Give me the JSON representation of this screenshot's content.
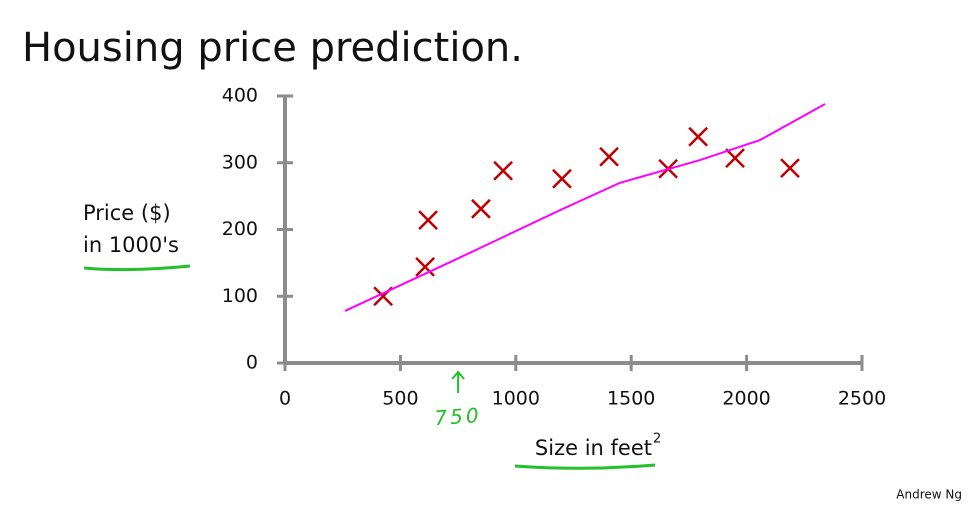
{
  "chart_data": {
    "type": "scatter",
    "title": "Housing price prediction.",
    "ylabel": [
      "Price ($)",
      "in 1000's"
    ],
    "xlabel": {
      "text": "Size in feet",
      "superscript": "2"
    },
    "credit": "Andrew Ng",
    "annotation": {
      "text": "750",
      "x": 750,
      "color": "#22c02a"
    },
    "xlim": [
      0,
      2500
    ],
    "ylim": [
      0,
      400
    ],
    "xticks": [
      0,
      500,
      1000,
      1500,
      2000,
      2500
    ],
    "yticks": [
      0,
      100,
      200,
      300,
      400
    ],
    "series": [
      {
        "type": "scatter",
        "color": "#c00000",
        "x": [
          425,
          607,
          620,
          849,
          945,
          1200,
          1404,
          1660,
          1790,
          1950,
          2188
        ],
        "values": [
          100,
          144,
          214,
          231,
          288,
          276,
          309,
          291,
          339,
          307,
          292
        ]
      },
      {
        "type": "line",
        "color": "#ff00ff",
        "x": [
          260,
          715,
          1192,
          1452,
          1798,
          2058,
          2340
        ],
        "values": [
          78,
          151,
          229,
          270,
          304,
          334,
          388
        ]
      }
    ]
  }
}
